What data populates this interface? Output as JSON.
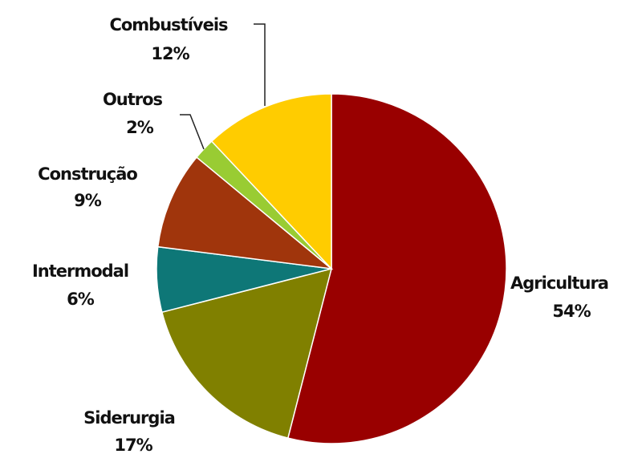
{
  "chart_data": {
    "type": "pie",
    "title": "",
    "slices": [
      {
        "label": "Agricultura",
        "percent_label": "54%",
        "value": 54,
        "color": "#990000"
      },
      {
        "label": "Siderurgia",
        "percent_label": "17%",
        "value": 17,
        "color": "#808000"
      },
      {
        "label": "Intermodal",
        "percent_label": "6%",
        "value": 6,
        "color": "#0e7777"
      },
      {
        "label": "Construção",
        "percent_label": "9%",
        "value": 9,
        "color": "#a0350c"
      },
      {
        "label": "Outros",
        "percent_label": "2%",
        "value": 2,
        "color": "#99cc33"
      },
      {
        "label": "Combustíveis",
        "percent_label": "12%",
        "value": 12,
        "color": "#ffcc00"
      }
    ],
    "start_angle_deg": 0,
    "direction": "clockwise",
    "legend": "none"
  }
}
